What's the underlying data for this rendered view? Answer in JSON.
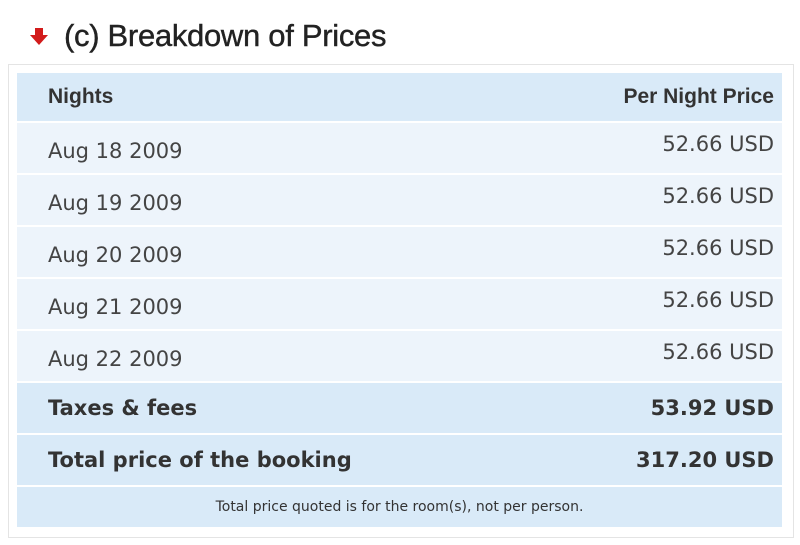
{
  "section": {
    "title": "(c) Breakdown of Prices",
    "arrow_color": "#d21b1b"
  },
  "table": {
    "headers": {
      "nights": "Nights",
      "price": "Per Night Price"
    },
    "nights": [
      {
        "date": "Aug 18 2009",
        "price": "52.66 USD"
      },
      {
        "date": "Aug 19 2009",
        "price": "52.66 USD"
      },
      {
        "date": "Aug 20 2009",
        "price": "52.66 USD"
      },
      {
        "date": "Aug 21 2009",
        "price": "52.66 USD"
      },
      {
        "date": "Aug 22 2009",
        "price": "52.66 USD"
      }
    ],
    "taxes": {
      "label": "Taxes & fees",
      "value": "53.92 USD"
    },
    "total": {
      "label": "Total price of the booking",
      "value": "317.20 USD"
    },
    "footnote": "Total price quoted is for the room(s), not per person."
  },
  "colors": {
    "header_row": "#d9eaf8",
    "night_row": "#edf4fb"
  }
}
